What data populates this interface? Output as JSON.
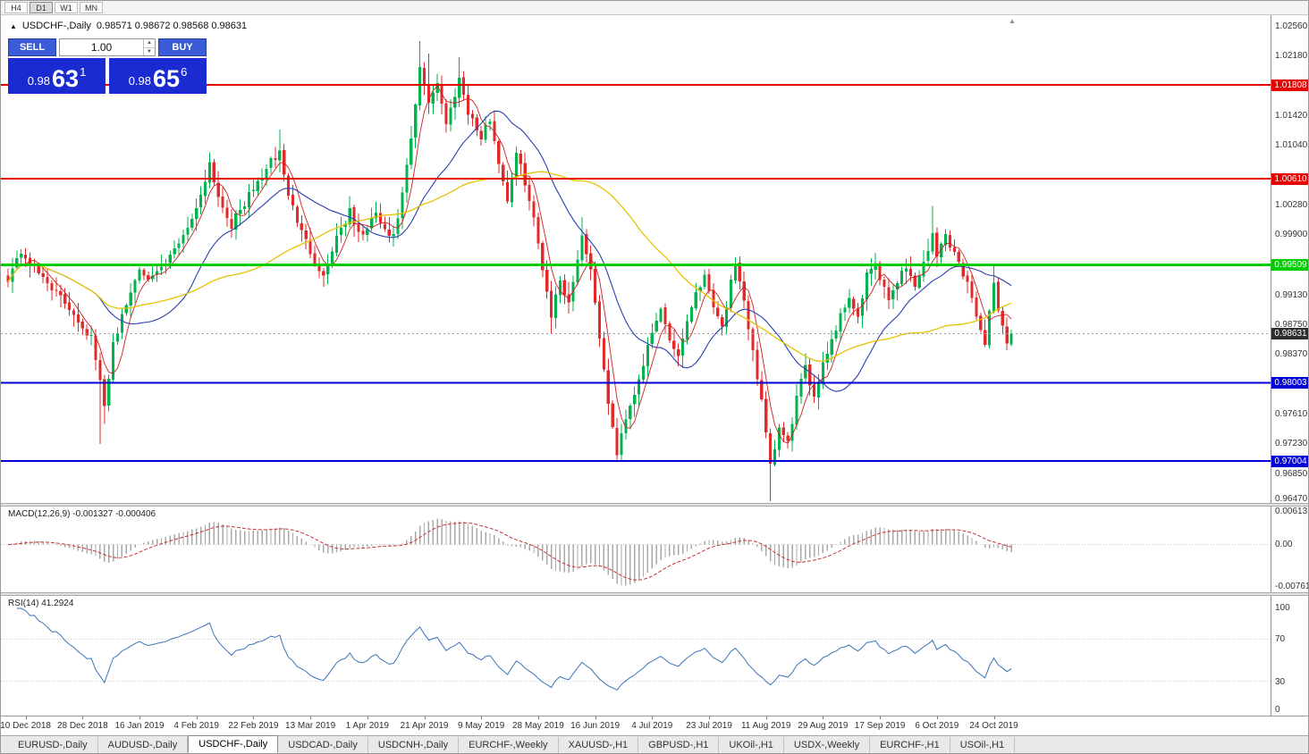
{
  "window": {
    "timeframes": [
      "H4",
      "D1",
      "W1",
      "MN"
    ],
    "active_timeframe": "D1"
  },
  "chart": {
    "collapse_icon": "▲",
    "shift_marker_icon": "▲",
    "title_symbol": "USDCHF-,Daily",
    "title_ohlc": "0.98571 0.98672 0.98568 0.98631",
    "current_price": "0.98631",
    "current_price_color": "#2e2e2e",
    "y_axis_labels": [
      "1.02560",
      "1.02180",
      "1.01420",
      "1.01040",
      "1.00280",
      "0.99900",
      "0.99130",
      "0.98750",
      "0.98370",
      "0.97610",
      "0.97230",
      "0.96850",
      "0.96470"
    ],
    "h_lines": [
      {
        "price": "1.01808",
        "value": 1.01808,
        "color": "#e60000",
        "width": 2
      },
      {
        "price": "1.00610",
        "value": 1.0061,
        "color": "#e60000",
        "width": 2
      },
      {
        "price": "0.99509",
        "value": 0.99509,
        "color": "#00cc00",
        "width": 3
      },
      {
        "price": "0.98003",
        "value": 0.98003,
        "color": "#0000d6",
        "width": 2
      },
      {
        "price": "0.97004",
        "value": 0.97004,
        "color": "#0000d6",
        "width": 2
      }
    ]
  },
  "trade_panel": {
    "sell_label": "SELL",
    "buy_label": "BUY",
    "volume": "1.00",
    "spin_up": "▲",
    "spin_down": "▼",
    "sell_price": {
      "base": "0.98",
      "big": "63",
      "sup": "1"
    },
    "buy_price": {
      "base": "0.98",
      "big": "65",
      "sup": "6"
    }
  },
  "macd": {
    "label": "MACD(12,26,9) -0.001327 -0.000406",
    "axis": [
      {
        "label": "0.00613",
        "value": 0.00613
      },
      {
        "label": "0.00",
        "value": 0
      },
      {
        "label": "-0.007612",
        "value": -0.0076124
      }
    ]
  },
  "rsi": {
    "label": "RSI(14) 41.2924",
    "axis": [
      {
        "label": "100",
        "value": 100
      },
      {
        "label": "70",
        "value": 70
      },
      {
        "label": "30",
        "value": 30
      },
      {
        "label": "0",
        "value": 0
      }
    ]
  },
  "tabs": {
    "items": [
      "EURUSD-,Daily",
      "AUDUSD-,Daily",
      "USDCHF-,Daily",
      "USDCAD-,Daily",
      "USDCNH-,Daily",
      "EURCHF-,Weekly",
      "XAUUSD-,H1",
      "GBPUSD-,H1",
      "UKOil-,H1",
      "USDX-,Weekly",
      "EURCHF-,H1",
      "USOil-,H1"
    ],
    "active_index": 2
  },
  "colors": {
    "candle_up": "#00b34d",
    "candle_down": "#e12b2b",
    "ma_fast": "#cc1f1f",
    "ma_mid": "#2a3fb0",
    "ma_slow": "#e6c200",
    "macd_hist": "#a9a9a9",
    "macd_signal": "#c83232",
    "rsi_line": "#3b72b8",
    "current_line": "#9a9a9a",
    "grid_dotted": "#c8c8c8"
  },
  "chart_data": {
    "type": "candlestick",
    "symbol": "USDCHF",
    "timeframe": "Daily",
    "title": "USDCHF-,Daily",
    "ohlc_display": {
      "open": 0.98571,
      "high": 0.98672,
      "low": 0.98568,
      "close": 0.98631
    },
    "last_close": 0.98631,
    "candle_count": 230,
    "first_candle_x": 8,
    "candle_spacing": 4.9,
    "y_range": [
      0.9647,
      1.02698
    ],
    "horizontal_levels": [
      1.01808,
      1.0061,
      0.99509,
      0.98631,
      0.98003,
      0.97004
    ],
    "close_path_anchors": [
      [
        0,
        0.9935
      ],
      [
        3,
        0.9968
      ],
      [
        6,
        0.9945
      ],
      [
        9,
        0.993
      ],
      [
        12,
        0.9908
      ],
      [
        15,
        0.989
      ],
      [
        17,
        0.9872
      ],
      [
        19,
        0.9858
      ],
      [
        21,
        0.98
      ],
      [
        22,
        0.9768
      ],
      [
        24,
        0.9852
      ],
      [
        27,
        0.99
      ],
      [
        30,
        0.9948
      ],
      [
        33,
        0.9932
      ],
      [
        36,
        0.9952
      ],
      [
        39,
        0.998
      ],
      [
        43,
        1.0022
      ],
      [
        46,
        1.0082
      ],
      [
        48,
        1.0038
      ],
      [
        51,
        1.0002
      ],
      [
        54,
        1.003
      ],
      [
        57,
        1.0056
      ],
      [
        60,
        1.0082
      ],
      [
        62,
        1.0095
      ],
      [
        64,
        1.004
      ],
      [
        67,
        0.9992
      ],
      [
        70,
        0.9958
      ],
      [
        72,
        0.9936
      ],
      [
        75,
        0.9988
      ],
      [
        78,
        1.0018
      ],
      [
        80,
        0.999
      ],
      [
        82,
        0.9995
      ],
      [
        84,
        1.0018
      ],
      [
        86,
        0.9992
      ],
      [
        88,
        0.9985
      ],
      [
        90,
        1.004
      ],
      [
        92,
        1.011
      ],
      [
        94,
        1.02
      ],
      [
        96,
        1.016
      ],
      [
        98,
        1.0185
      ],
      [
        100,
        1.013
      ],
      [
        103,
        1.019
      ],
      [
        105,
        1.0148
      ],
      [
        108,
        1.0112
      ],
      [
        110,
        1.0138
      ],
      [
        112,
        1.0082
      ],
      [
        114,
        1.0035
      ],
      [
        116,
        1.0092
      ],
      [
        118,
        1.0058
      ],
      [
        120,
        1.0008
      ],
      [
        122,
        0.9948
      ],
      [
        124,
        0.9888
      ],
      [
        126,
        0.9932
      ],
      [
        128,
        0.9902
      ],
      [
        131,
        0.999
      ],
      [
        133,
        0.9944
      ],
      [
        134,
        0.9906
      ],
      [
        136,
        0.9812
      ],
      [
        138,
        0.9742
      ],
      [
        139,
        0.9708
      ],
      [
        141,
        0.9758
      ],
      [
        143,
        0.9788
      ],
      [
        145,
        0.9826
      ],
      [
        147,
        0.9862
      ],
      [
        149,
        0.9895
      ],
      [
        151,
        0.9856
      ],
      [
        153,
        0.9836
      ],
      [
        155,
        0.988
      ],
      [
        157,
        0.9918
      ],
      [
        159,
        0.9936
      ],
      [
        161,
        0.9902
      ],
      [
        163,
        0.9872
      ],
      [
        165,
        0.9928
      ],
      [
        166,
        0.9948
      ],
      [
        168,
        0.9902
      ],
      [
        170,
        0.9842
      ],
      [
        172,
        0.9775
      ],
      [
        174,
        0.9692
      ],
      [
        176,
        0.9742
      ],
      [
        178,
        0.9722
      ],
      [
        180,
        0.9782
      ],
      [
        182,
        0.9818
      ],
      [
        184,
        0.9784
      ],
      [
        186,
        0.9826
      ],
      [
        188,
        0.9856
      ],
      [
        190,
        0.9886
      ],
      [
        192,
        0.9912
      ],
      [
        194,
        0.9882
      ],
      [
        196,
        0.9936
      ],
      [
        198,
        0.9954
      ],
      [
        199,
        0.993
      ],
      [
        201,
        0.9906
      ],
      [
        203,
        0.9932
      ],
      [
        205,
        0.995
      ],
      [
        207,
        0.9922
      ],
      [
        209,
        0.9956
      ],
      [
        211,
        0.9988
      ],
      [
        212,
        0.9962
      ],
      [
        214,
        0.999
      ],
      [
        216,
        0.9966
      ],
      [
        218,
        0.994
      ],
      [
        220,
        0.9912
      ],
      [
        222,
        0.9868
      ],
      [
        223,
        0.9846
      ],
      [
        225,
        0.9928
      ],
      [
        226,
        0.9898
      ],
      [
        227,
        0.9872
      ],
      [
        228,
        0.9852
      ],
      [
        229,
        0.98631
      ]
    ],
    "spikes": [
      {
        "i": 21,
        "low": 0.9722
      },
      {
        "i": 22,
        "low": 0.9748
      },
      {
        "i": 62,
        "high": 1.0124
      },
      {
        "i": 94,
        "high": 1.0237
      },
      {
        "i": 96,
        "high": 1.0221
      },
      {
        "i": 103,
        "high": 1.0216
      },
      {
        "i": 124,
        "low": 0.9864
      },
      {
        "i": 131,
        "high": 1.0012
      },
      {
        "i": 139,
        "low": 0.9699
      },
      {
        "i": 174,
        "low": 0.9646
      },
      {
        "i": 211,
        "high": 1.0026
      },
      {
        "i": 225,
        "high": 0.9952
      }
    ],
    "moving_averages": [
      {
        "period": 5
      },
      {
        "period": 21
      },
      {
        "period": 50
      }
    ],
    "macd": {
      "fast": 12,
      "slow": 26,
      "signal": 9,
      "last": -0.001327,
      "last_signal": -0.000406,
      "y_range": [
        -0.0076124,
        0.00613
      ]
    },
    "rsi": {
      "period": 14,
      "last": 41.2924,
      "levels": [
        70,
        30
      ],
      "y_range": [
        0,
        100
      ]
    },
    "x_dates": [
      [
        "10 Dec 2018",
        4
      ],
      [
        "28 Dec 2018",
        17
      ],
      [
        "16 Jan 2019",
        30
      ],
      [
        "4 Feb 2019",
        43
      ],
      [
        "22 Feb 2019",
        56
      ],
      [
        "13 Mar 2019",
        69
      ],
      [
        "1 Apr 2019",
        82
      ],
      [
        "21 Apr 2019",
        95
      ],
      [
        "9 May 2019",
        108
      ],
      [
        "28 May 2019",
        121
      ],
      [
        "16 Jun 2019",
        134
      ],
      [
        "4 Jul 2019",
        147
      ],
      [
        "23 Jul 2019",
        160
      ],
      [
        "11 Aug 2019",
        173
      ],
      [
        "29 Aug 2019",
        186
      ],
      [
        "17 Sep 2019",
        199
      ],
      [
        "6 Oct 2019",
        212
      ],
      [
        "24 Oct 2019",
        225
      ]
    ]
  }
}
